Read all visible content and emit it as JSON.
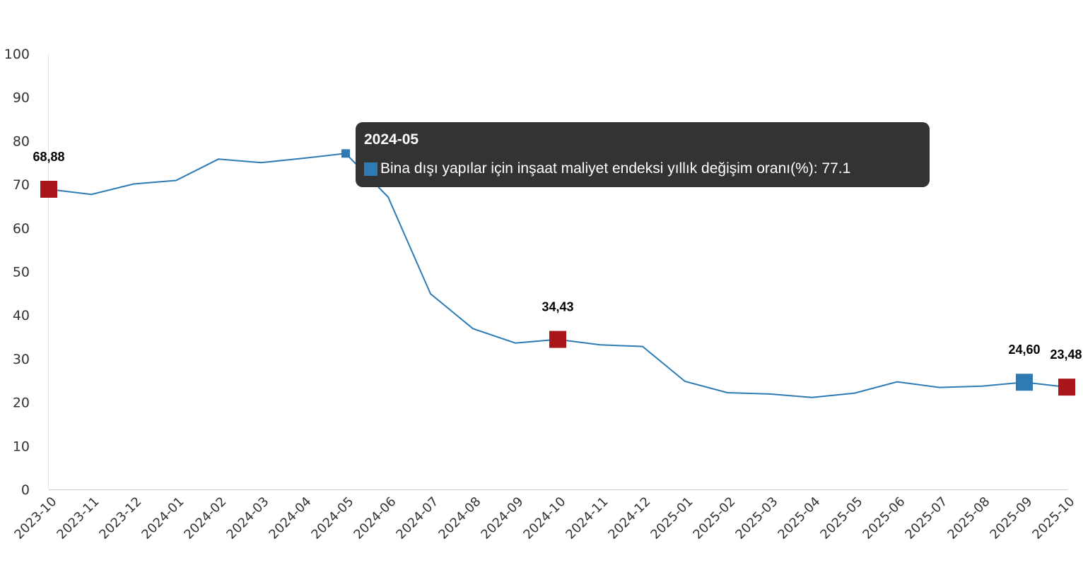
{
  "chart_data": {
    "type": "line",
    "categories": [
      "2023-10",
      "2023-11",
      "2023-12",
      "2024-01",
      "2024-02",
      "2024-03",
      "2024-04",
      "2024-05",
      "2024-06",
      "2024-07",
      "2024-08",
      "2024-09",
      "2024-10",
      "2024-11",
      "2024-12",
      "2025-01",
      "2025-02",
      "2025-03",
      "2025-04",
      "2025-05",
      "2025-06",
      "2025-07",
      "2025-08",
      "2025-09",
      "2025-10"
    ],
    "series": [
      {
        "name": "Bina dışı yapılar için inşaat maliyet endeksi yıllık değişim oranı(%)",
        "values": [
          68.88,
          67.7,
          70.1,
          70.9,
          75.8,
          75.0,
          76.0,
          77.1,
          67.1,
          44.9,
          36.9,
          33.6,
          34.43,
          33.2,
          32.8,
          24.8,
          22.2,
          21.9,
          21.1,
          22.1,
          24.7,
          23.4,
          23.7,
          24.6,
          23.48
        ],
        "color": "#2e7bb4"
      }
    ],
    "ylim": [
      0,
      100
    ],
    "yticks": [
      0,
      10,
      20,
      30,
      40,
      50,
      60,
      70,
      80,
      90,
      100
    ],
    "grid": false,
    "legend": "none",
    "highlighted_points": [
      {
        "index": 0,
        "label": "68,88",
        "color": "#a8161b"
      },
      {
        "index": 12,
        "label": "34,43",
        "color": "#a8161b"
      },
      {
        "index": 23,
        "label": "24,60",
        "color": "#2e7bb4"
      },
      {
        "index": 24,
        "label": "23,48",
        "color": "#a8161b"
      }
    ],
    "hovered_index": 7,
    "tooltip": {
      "title": "2024-05",
      "text": "Bina dışı yapılar için inşaat maliyet endeksi yıllık değişim oranı(%): 77.1",
      "swatch_color": "#2e7bb4"
    }
  }
}
